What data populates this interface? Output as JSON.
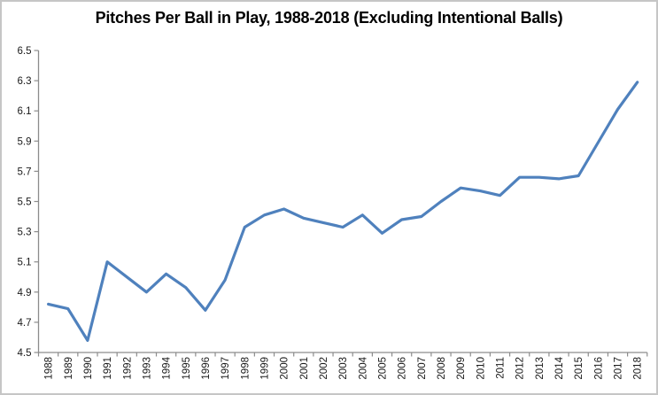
{
  "chart_data": {
    "type": "line",
    "title": "Pitches Per Ball in Play, 1988-2018 (Excluding Intentional Balls)",
    "xlabel": "",
    "ylabel": "",
    "x": [
      1988,
      1989,
      1990,
      1991,
      1992,
      1993,
      1994,
      1995,
      1996,
      1997,
      1998,
      1999,
      2000,
      2001,
      2002,
      2003,
      2004,
      2005,
      2006,
      2007,
      2008,
      2009,
      2010,
      2011,
      2012,
      2013,
      2014,
      2015,
      2016,
      2017,
      2018
    ],
    "series": [
      {
        "name": "Pitches per ball in play",
        "values": [
          4.82,
          4.79,
          4.58,
          5.1,
          5.0,
          4.9,
          5.02,
          4.93,
          4.78,
          4.98,
          5.33,
          5.41,
          5.45,
          5.39,
          5.36,
          5.33,
          5.41,
          5.29,
          5.38,
          5.4,
          5.5,
          5.59,
          5.57,
          5.54,
          5.66,
          5.66,
          5.65,
          5.67,
          5.89,
          6.11,
          6.29
        ]
      }
    ],
    "ylim": [
      4.5,
      6.5
    ],
    "ytick_step": 0.2,
    "yticks": [
      "4.5",
      "4.7",
      "4.9",
      "5.1",
      "5.3",
      "5.5",
      "5.7",
      "5.9",
      "6.1",
      "6.3",
      "6.5"
    ],
    "grid": false,
    "legend": false,
    "line_color": "#4F81BD",
    "axis_color": "#8C8C8C",
    "label_color": "#1a1a1a",
    "border_color": "#c6c6c6",
    "background": "#ffffff"
  }
}
